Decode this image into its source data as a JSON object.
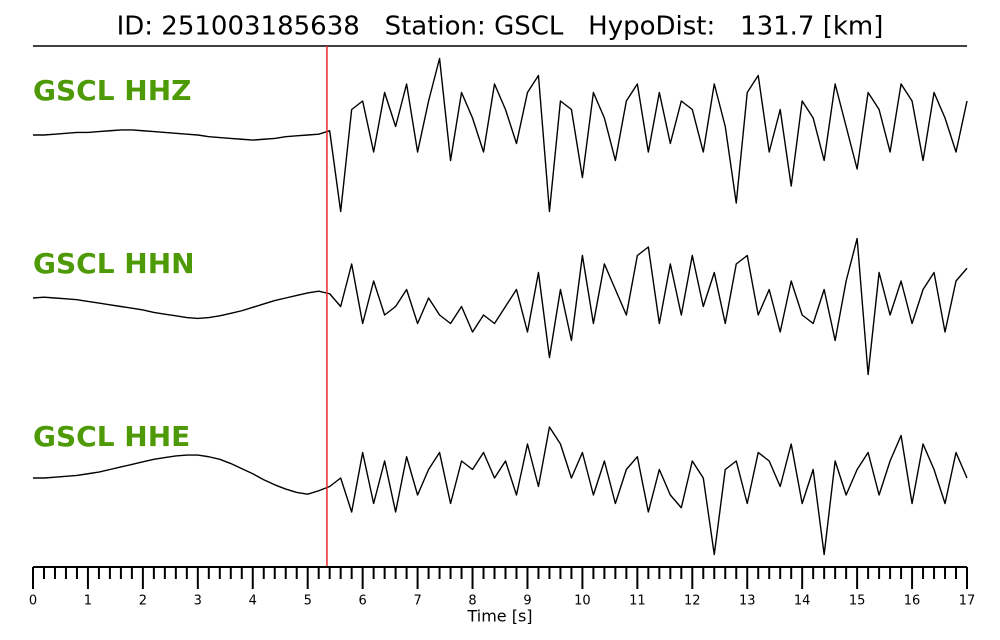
{
  "chart_data": {
    "type": "line",
    "title": "ID: 251003185638   Station: GSCL   HypoDist:   131.7 [km]",
    "xlabel": "Time [s]",
    "xlim": [
      0,
      17
    ],
    "xticks": [
      0,
      1,
      2,
      3,
      4,
      5,
      6,
      7,
      8,
      9,
      10,
      11,
      12,
      13,
      14,
      15,
      16,
      17
    ],
    "xminorticks": [
      0.2,
      0.4,
      0.6,
      0.8,
      1.2,
      1.4,
      1.6,
      1.8,
      2.2,
      2.4,
      2.6,
      2.8,
      3.2,
      3.4,
      3.6,
      3.8,
      4.2,
      4.4,
      4.6,
      4.8,
      5.2,
      5.4,
      5.6,
      5.8,
      6.2,
      6.4,
      6.6,
      6.8,
      7.2,
      7.4,
      7.6,
      7.8,
      8.2,
      8.4,
      8.6,
      8.8,
      9.2,
      9.4,
      9.6,
      9.8,
      10.2,
      10.4,
      10.6,
      10.8,
      11.2,
      11.4,
      11.6,
      11.8,
      12.2,
      12.4,
      12.6,
      12.8,
      13.2,
      13.4,
      13.6,
      13.8,
      14.2,
      14.4,
      14.6,
      14.8,
      15.2,
      15.4,
      15.6,
      15.8,
      16.2,
      16.4,
      16.6,
      16.8
    ],
    "ylim": [
      -1,
      1
    ],
    "pick_x": 5.35,
    "pick_color": "#e8282b",
    "label_color": "#4e9a06",
    "x": [
      0,
      0.2,
      0.4,
      0.6,
      0.8,
      1,
      1.2,
      1.4,
      1.6,
      1.8,
      2,
      2.2,
      2.4,
      2.6,
      2.8,
      3,
      3.2,
      3.4,
      3.6,
      3.8,
      4,
      4.2,
      4.4,
      4.6,
      4.8,
      5,
      5.2,
      5.4,
      5.6,
      5.8,
      6,
      6.2,
      6.4,
      6.6,
      6.8,
      7,
      7.2,
      7.4,
      7.6,
      7.8,
      8,
      8.2,
      8.4,
      8.6,
      8.8,
      9,
      9.2,
      9.4,
      9.6,
      9.8,
      10,
      10.2,
      10.4,
      10.6,
      10.8,
      11,
      11.2,
      11.4,
      11.6,
      11.8,
      12,
      12.2,
      12.4,
      12.6,
      12.8,
      13,
      13.2,
      13.4,
      13.6,
      13.8,
      14,
      14.2,
      14.4,
      14.6,
      14.8,
      15,
      15.2,
      15.4,
      15.6,
      15.8,
      16,
      16.2,
      16.4,
      16.6,
      16.8,
      17
    ],
    "series": [
      {
        "name": "GSCL HHZ",
        "color": "#000000",
        "values": [
          0,
          0,
          0.01,
          0.02,
          0.03,
          0.03,
          0.04,
          0.05,
          0.06,
          0.06,
          0.05,
          0.04,
          0.03,
          0.02,
          0.01,
          0,
          -0.02,
          -0.03,
          -0.04,
          -0.05,
          -0.06,
          -0.05,
          -0.04,
          -0.02,
          -0.01,
          0,
          0.01,
          0.05,
          -0.9,
          0.3,
          0.4,
          -0.2,
          0.5,
          0.1,
          0.6,
          -0.2,
          0.4,
          0.9,
          -0.3,
          0.5,
          0.2,
          -0.2,
          0.6,
          0.3,
          -0.1,
          0.5,
          0.7,
          -0.9,
          0.4,
          0.3,
          -0.5,
          0.5,
          0.2,
          -0.3,
          0.4,
          0.6,
          -0.2,
          0.5,
          -0.1,
          0.4,
          0.3,
          -0.2,
          0.6,
          0.1,
          -0.8,
          0.5,
          0.7,
          -0.2,
          0.3,
          -0.6,
          0.4,
          0.2,
          -0.3,
          0.6,
          0.1,
          -0.4,
          0.5,
          0.3,
          -0.2,
          0.6,
          0.4,
          -0.3,
          0.5,
          0.2,
          -0.2,
          0.4
        ]
      },
      {
        "name": "GSCL HHN",
        "color": "#000000",
        "values": [
          0,
          0.01,
          0,
          -0.01,
          -0.02,
          -0.04,
          -0.06,
          -0.08,
          -0.1,
          -0.12,
          -0.14,
          -0.17,
          -0.19,
          -0.21,
          -0.23,
          -0.24,
          -0.23,
          -0.21,
          -0.18,
          -0.15,
          -0.11,
          -0.07,
          -0.03,
          0,
          0.03,
          0.06,
          0.08,
          0.05,
          -0.1,
          0.4,
          -0.3,
          0.2,
          -0.2,
          -0.1,
          0.1,
          -0.3,
          0.0,
          -0.2,
          -0.3,
          -0.1,
          -0.4,
          -0.2,
          -0.3,
          -0.1,
          0.1,
          -0.4,
          0.3,
          -0.7,
          0.1,
          -0.5,
          0.5,
          -0.3,
          0.4,
          0.1,
          -0.2,
          0.5,
          0.6,
          -0.3,
          0.4,
          -0.2,
          0.5,
          -0.1,
          0.3,
          -0.3,
          0.4,
          0.5,
          -0.2,
          0.1,
          -0.4,
          0.2,
          -0.2,
          -0.3,
          0.1,
          -0.5,
          0.2,
          0.7,
          -0.9,
          0.3,
          -0.2,
          0.2,
          -0.3,
          0.1,
          0.3,
          -0.4,
          0.2,
          0.35
        ]
      },
      {
        "name": "GSCL HHE",
        "color": "#000000",
        "values": [
          0,
          0,
          0.01,
          0.02,
          0.03,
          0.05,
          0.07,
          0.1,
          0.13,
          0.16,
          0.19,
          0.22,
          0.24,
          0.26,
          0.27,
          0.27,
          0.25,
          0.22,
          0.17,
          0.11,
          0.05,
          -0.02,
          -0.08,
          -0.13,
          -0.17,
          -0.19,
          -0.15,
          -0.1,
          0.0,
          -0.4,
          0.3,
          -0.3,
          0.2,
          -0.4,
          0.25,
          -0.2,
          0.1,
          0.3,
          -0.3,
          0.2,
          0.1,
          0.3,
          0.0,
          0.2,
          -0.2,
          0.4,
          -0.1,
          0.6,
          0.4,
          0.0,
          0.3,
          -0.2,
          0.2,
          -0.3,
          0.1,
          0.25,
          -0.4,
          0.1,
          -0.2,
          -0.35,
          0.2,
          0.0,
          -0.9,
          0.1,
          0.2,
          -0.3,
          0.3,
          0.2,
          -0.1,
          0.4,
          -0.3,
          0.1,
          -0.9,
          0.2,
          -0.2,
          0.1,
          0.3,
          -0.2,
          0.2,
          0.5,
          -0.3,
          0.4,
          0.1,
          -0.3,
          0.3,
          0.0
        ]
      }
    ]
  }
}
